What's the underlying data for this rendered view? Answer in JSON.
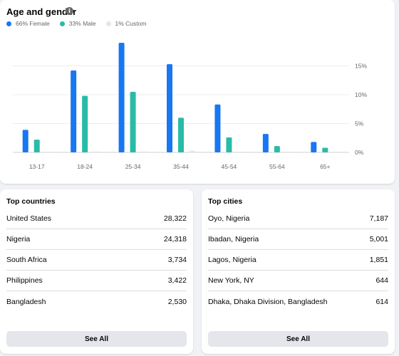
{
  "age_gender": {
    "title": "Age and gender",
    "info_icon": "info-icon",
    "legend": [
      {
        "label": "66% Female",
        "color": "#1877f2"
      },
      {
        "label": "33% Male",
        "color": "#2abba7"
      },
      {
        "label": "1% Custom",
        "color": "#e4e6eb"
      }
    ]
  },
  "chart_data": {
    "type": "bar",
    "categories": [
      "13-17",
      "18-24",
      "25-34",
      "35-44",
      "45-54",
      "55-64",
      "65+"
    ],
    "series": [
      {
        "name": "66% Female",
        "color": "#1877f2",
        "values": [
          3.9,
          14.2,
          19.0,
          15.3,
          8.3,
          3.2,
          1.8
        ]
      },
      {
        "name": "33% Male",
        "color": "#2abba7",
        "values": [
          2.2,
          9.8,
          10.5,
          6.0,
          2.6,
          1.1,
          0.8
        ]
      },
      {
        "name": "1% Custom",
        "color": "#e4e6eb",
        "values": [
          0.05,
          0.15,
          0.15,
          0.3,
          0.05,
          0.05,
          0.05
        ]
      }
    ],
    "y_ticks": [
      "0%",
      "5%",
      "10%",
      "15%"
    ],
    "y_tick_values": [
      0,
      5,
      10,
      15
    ],
    "ylim": [
      0,
      20
    ],
    "grid": true
  },
  "top_countries": {
    "title": "Top countries",
    "rows": [
      {
        "name": "United States",
        "value": "28,322"
      },
      {
        "name": "Nigeria",
        "value": "24,318"
      },
      {
        "name": "South Africa",
        "value": "3,734"
      },
      {
        "name": "Philippines",
        "value": "3,422"
      },
      {
        "name": "Bangladesh",
        "value": "2,530"
      }
    ],
    "button": "See All"
  },
  "top_cities": {
    "title": "Top cities",
    "rows": [
      {
        "name": "Oyo, Nigeria",
        "value": "7,187"
      },
      {
        "name": "Ibadan, Nigeria",
        "value": "5,001"
      },
      {
        "name": "Lagos, Nigeria",
        "value": "1,851"
      },
      {
        "name": "New York, NY",
        "value": "644"
      },
      {
        "name": "Dhaka, Dhaka Division, Bangladesh",
        "value": "614"
      }
    ],
    "button": "See All"
  }
}
